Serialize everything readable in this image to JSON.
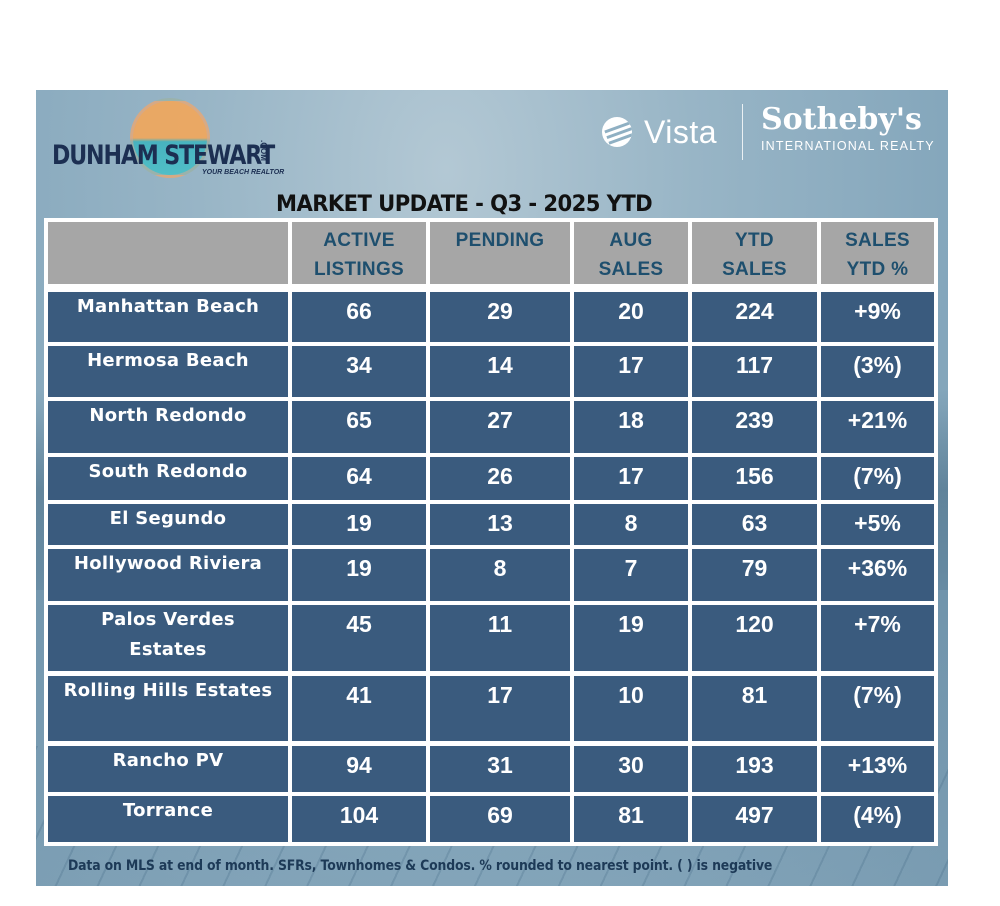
{
  "branding": {
    "left_logo": {
      "name": "DUNHAM STEWART",
      "domain_suffix": ".COM",
      "tagline": "YOUR BEACH REALTOR"
    },
    "right_logo": {
      "vista": "Vista",
      "sothebys": "Sotheby's",
      "sothebys_sub": "INTERNATIONAL REALTY"
    }
  },
  "title": "MARKET UPDATE - Q3 - 2025 YTD",
  "table": {
    "columns": [
      "",
      "ACTIVE\nLISTINGS",
      "PENDING",
      "AUG\nSALES",
      "YTD\nSALES",
      "SALES\nYTD %"
    ],
    "header_lines": [
      [
        ""
      ],
      [
        "ACTIVE",
        "LISTINGS"
      ],
      [
        "PENDING"
      ],
      [
        "AUG",
        "SALES"
      ],
      [
        "YTD",
        "SALES"
      ],
      [
        "SALES",
        "YTD %"
      ]
    ],
    "rows": [
      {
        "area": "Manhattan Beach",
        "active": "66",
        "pending": "29",
        "aug_sales": "20",
        "ytd_sales": "224",
        "ytd_pct": "+9%"
      },
      {
        "area": "Hermosa Beach",
        "active": "34",
        "pending": "14",
        "aug_sales": "17",
        "ytd_sales": "117",
        "ytd_pct": "(3%)"
      },
      {
        "area": "North Redondo",
        "active": "65",
        "pending": "27",
        "aug_sales": "18",
        "ytd_sales": "239",
        "ytd_pct": "+21%"
      },
      {
        "area": "South Redondo",
        "active": "64",
        "pending": "26",
        "aug_sales": "17",
        "ytd_sales": "156",
        "ytd_pct": "(7%)"
      },
      {
        "area": "El Segundo",
        "active": "19",
        "pending": "13",
        "aug_sales": "8",
        "ytd_sales": "63",
        "ytd_pct": "+5%"
      },
      {
        "area": "Hollywood Riviera",
        "active": "19",
        "pending": "8",
        "aug_sales": "7",
        "ytd_sales": "79",
        "ytd_pct": "+36%"
      },
      {
        "area": "Palos Verdes Estates",
        "area_lines": [
          "Palos Verdes",
          "Estates"
        ],
        "active": "45",
        "pending": "11",
        "aug_sales": "19",
        "ytd_sales": "120",
        "ytd_pct": "+7%"
      },
      {
        "area": "Rolling Hills Estates",
        "active": "41",
        "pending": "17",
        "aug_sales": "10",
        "ytd_sales": "81",
        "ytd_pct": "(7%)"
      },
      {
        "area": "Rancho PV",
        "active": "94",
        "pending": "31",
        "aug_sales": "30",
        "ytd_sales": "193",
        "ytd_pct": "+13%"
      },
      {
        "area": "Torrance",
        "active": "104",
        "pending": "69",
        "aug_sales": "81",
        "ytd_sales": "497",
        "ytd_pct": "(4%)"
      }
    ]
  },
  "footnote": "Data on MLS at end of month.  SFRs, Townhomes & Condos. % rounded to nearest point. ( ) is negative",
  "colors": {
    "header_bg": "#a6a6a6",
    "header_text": "#1e4f6e",
    "cell_bg": "#1f446c",
    "cell_text": "#ffffff",
    "grid": "#ffffff",
    "logo_navy": "#1c2f52",
    "sun_orange": "#f3a75a",
    "wave_teal": "#3fb3bf"
  }
}
